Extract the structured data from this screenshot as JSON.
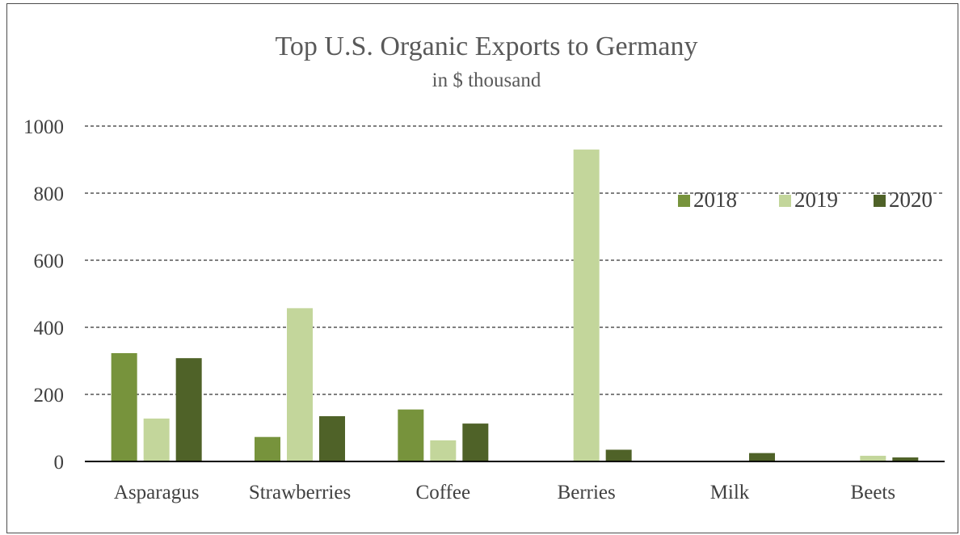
{
  "chart_data": {
    "type": "bar",
    "title": "Top U.S. Organic Exports to Germany",
    "subtitle": "in $ thousand",
    "categories": [
      "Asparagus",
      "Strawberries",
      "Coffee",
      "Berries",
      "Milk",
      "Beets"
    ],
    "series": [
      {
        "name": "2018",
        "color": "#77933c",
        "values": [
          323,
          73,
          155,
          0,
          0,
          0
        ]
      },
      {
        "name": "2019",
        "color": "#c3d69b",
        "values": [
          128,
          457,
          63,
          930,
          0,
          17
        ]
      },
      {
        "name": "2020",
        "color": "#4f6228",
        "values": [
          308,
          135,
          113,
          35,
          25,
          12
        ]
      }
    ],
    "ylim": [
      0,
      1000
    ],
    "yticks": [
      0,
      200,
      400,
      600,
      800,
      1000
    ],
    "grid": true,
    "legend_position": "top-right"
  }
}
